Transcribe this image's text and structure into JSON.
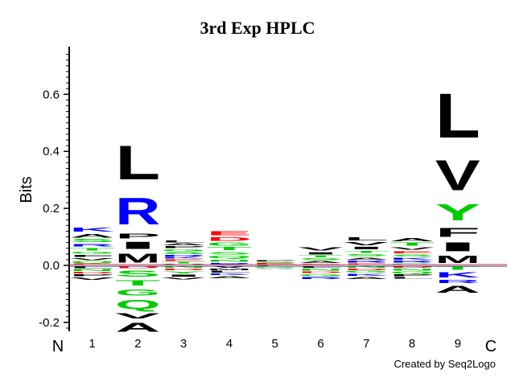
{
  "chart_data": {
    "type": "sequence-logo",
    "title": "3rd Exp HPLC",
    "ylabel": "Bits",
    "ylim": [
      -0.23,
      0.77
    ],
    "yticks": [
      -0.2,
      0.0,
      0.2,
      0.4,
      0.6
    ],
    "ytick_labels": [
      "-0.2",
      "0.0",
      "0.2",
      "0.4",
      "0.6"
    ],
    "positions": [
      "1",
      "2",
      "3",
      "4",
      "5",
      "6",
      "7",
      "8",
      "9"
    ],
    "n_terminus_label": "N",
    "c_terminus_label": "C",
    "grid": false,
    "color_scheme": {
      "hydrophobic": "#000000",
      "basic": "#0000ff",
      "acidic": "#ff0000",
      "polar": "#00cc00",
      "other": "#cc00cc"
    },
    "columns": [
      {
        "position": "1",
        "pos": [
          [
            "K",
            0.022,
            "basic"
          ],
          [
            "A",
            0.02,
            "hydrophobic"
          ],
          [
            "S",
            0.016,
            "polar"
          ],
          [
            "R",
            0.015,
            "basic"
          ],
          [
            "T",
            0.013,
            "polar"
          ],
          [
            "G",
            0.012,
            "polar"
          ],
          [
            "F",
            0.011,
            "hydrophobic"
          ],
          [
            "V",
            0.01,
            "hydrophobic"
          ],
          [
            "Q",
            0.01,
            "polar"
          ],
          [
            "E",
            0.007,
            "acidic"
          ]
        ],
        "neg": [
          [
            "L",
            0.012,
            "hydrophobic"
          ],
          [
            "N",
            0.01,
            "polar"
          ],
          [
            "D",
            0.008,
            "acidic"
          ],
          [
            "P",
            0.01,
            "hydrophobic"
          ],
          [
            "V",
            0.013,
            "hydrophobic"
          ]
        ]
      },
      {
        "position": "2",
        "pos": [
          [
            "L",
            0.19,
            "hydrophobic"
          ],
          [
            "R",
            0.15,
            "basic"
          ],
          [
            "P",
            0.025,
            "hydrophobic"
          ],
          [
            "I",
            0.04,
            "hydrophobic"
          ],
          [
            "M",
            0.05,
            "hydrophobic"
          ]
        ],
        "neg": [
          [
            "D",
            0.012,
            "acidic"
          ],
          [
            "S",
            0.035,
            "polar"
          ],
          [
            "T",
            0.03,
            "polar"
          ],
          [
            "G",
            0.035,
            "polar"
          ],
          [
            "Q",
            0.05,
            "polar"
          ],
          [
            "V",
            0.03,
            "hydrophobic"
          ],
          [
            "A",
            0.05,
            "hydrophobic"
          ]
        ]
      },
      {
        "position": "3",
        "pos": [
          [
            "L",
            0.012,
            "hydrophobic"
          ],
          [
            "A",
            0.01,
            "hydrophobic"
          ],
          [
            "P",
            0.01,
            "hydrophobic"
          ],
          [
            "G",
            0.01,
            "polar"
          ],
          [
            "S",
            0.01,
            "polar"
          ],
          [
            "R",
            0.008,
            "basic"
          ],
          [
            "K",
            0.008,
            "basic"
          ],
          [
            "E",
            0.008,
            "acidic"
          ],
          [
            "T",
            0.008,
            "polar"
          ],
          [
            "V",
            0.006,
            "hydrophobic"
          ]
        ],
        "neg": [
          [
            "N",
            0.01,
            "polar"
          ],
          [
            "D",
            0.008,
            "acidic"
          ],
          [
            "Y",
            0.012,
            "polar"
          ],
          [
            "I",
            0.012,
            "hydrophobic"
          ],
          [
            "V",
            0.01,
            "hydrophobic"
          ]
        ]
      },
      {
        "position": "4",
        "pos": [
          [
            "E",
            0.022,
            "acidic"
          ],
          [
            "D",
            0.02,
            "acidic"
          ],
          [
            "G",
            0.016,
            "polar"
          ],
          [
            "T",
            0.016,
            "polar"
          ],
          [
            "S",
            0.014,
            "polar"
          ],
          [
            "Q",
            0.014,
            "polar"
          ],
          [
            "N",
            0.012,
            "polar"
          ],
          [
            "R",
            0.01,
            "basic"
          ]
        ],
        "neg": [
          [
            "V",
            0.01,
            "hydrophobic"
          ],
          [
            "M",
            0.008,
            "hydrophobic"
          ],
          [
            "L",
            0.01,
            "hydrophobic"
          ],
          [
            "K",
            0.008,
            "basic"
          ],
          [
            "A",
            0.012,
            "hydrophobic"
          ]
        ]
      },
      {
        "position": "5",
        "pos": [
          [
            "P",
            0.006,
            "hydrophobic"
          ],
          [
            "S",
            0.005,
            "polar"
          ],
          [
            "E",
            0.004,
            "acidic"
          ],
          [
            "R",
            0.004,
            "basic"
          ]
        ],
        "neg": [
          [
            "L",
            0.006,
            "hydrophobic"
          ],
          [
            "G",
            0.005,
            "polar"
          ],
          [
            "A",
            0.004,
            "hydrophobic"
          ]
        ]
      },
      {
        "position": "6",
        "pos": [
          [
            "V",
            0.018,
            "hydrophobic"
          ],
          [
            "I",
            0.012,
            "hydrophobic"
          ],
          [
            "T",
            0.01,
            "polar"
          ],
          [
            "S",
            0.01,
            "polar"
          ],
          [
            "A",
            0.01,
            "hydrophobic"
          ],
          [
            "E",
            0.006,
            "acidic"
          ]
        ],
        "neg": [
          [
            "L",
            0.01,
            "hydrophobic"
          ],
          [
            "N",
            0.01,
            "polar"
          ],
          [
            "D",
            0.008,
            "acidic"
          ],
          [
            "G",
            0.012,
            "polar"
          ],
          [
            "R",
            0.01,
            "basic"
          ]
        ]
      },
      {
        "position": "7",
        "pos": [
          [
            "L",
            0.018,
            "hydrophobic"
          ],
          [
            "V",
            0.016,
            "hydrophobic"
          ],
          [
            "I",
            0.014,
            "hydrophobic"
          ],
          [
            "T",
            0.012,
            "polar"
          ],
          [
            "S",
            0.012,
            "polar"
          ],
          [
            "A",
            0.012,
            "hydrophobic"
          ],
          [
            "R",
            0.01,
            "basic"
          ],
          [
            "E",
            0.008,
            "acidic"
          ]
        ],
        "neg": [
          [
            "N",
            0.01,
            "polar"
          ],
          [
            "D",
            0.008,
            "acidic"
          ],
          [
            "G",
            0.01,
            "polar"
          ],
          [
            "K",
            0.01,
            "basic"
          ],
          [
            "A",
            0.012,
            "hydrophobic"
          ]
        ]
      },
      {
        "position": "8",
        "pos": [
          [
            "A",
            0.016,
            "hydrophobic"
          ],
          [
            "T",
            0.016,
            "polar"
          ],
          [
            "V",
            0.014,
            "hydrophobic"
          ],
          [
            "E",
            0.012,
            "acidic"
          ],
          [
            "S",
            0.012,
            "polar"
          ],
          [
            "K",
            0.01,
            "basic"
          ],
          [
            "R",
            0.01,
            "basic"
          ],
          [
            "G",
            0.008,
            "polar"
          ]
        ],
        "neg": [
          [
            "D",
            0.01,
            "acidic"
          ],
          [
            "N",
            0.01,
            "polar"
          ],
          [
            "Q",
            0.01,
            "polar"
          ],
          [
            "P",
            0.01,
            "hydrophobic"
          ],
          [
            "L",
            0.008,
            "hydrophobic"
          ]
        ]
      },
      {
        "position": "9",
        "pos": [
          [
            "L",
            0.25,
            "hydrophobic"
          ],
          [
            "V",
            0.17,
            "hydrophobic"
          ],
          [
            "Y",
            0.09,
            "polar"
          ],
          [
            "F",
            0.05,
            "hydrophobic"
          ],
          [
            "I",
            0.05,
            "hydrophobic"
          ],
          [
            "M",
            0.04,
            "hydrophobic"
          ]
        ],
        "neg": [
          [
            "T",
            0.02,
            "polar"
          ],
          [
            "K",
            0.028,
            "basic"
          ],
          [
            "R",
            0.018,
            "basic"
          ],
          [
            "A",
            0.038,
            "hydrophobic"
          ]
        ]
      }
    ],
    "credit": "Created by Seq2Logo"
  }
}
